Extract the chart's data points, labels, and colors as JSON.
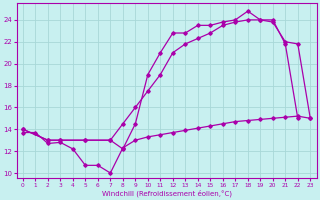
{
  "xlabel": "Windchill (Refroidissement éolien,°C)",
  "background_color": "#c8f0f0",
  "grid_color": "#a8d8d8",
  "line_color": "#aa00aa",
  "xlim": [
    -0.5,
    23.5
  ],
  "ylim": [
    9.5,
    25.5
  ],
  "xticks": [
    0,
    1,
    2,
    3,
    4,
    5,
    6,
    7,
    8,
    9,
    10,
    11,
    12,
    13,
    14,
    15,
    16,
    17,
    18,
    19,
    20,
    21,
    22,
    23
  ],
  "yticks": [
    10,
    12,
    14,
    16,
    18,
    20,
    22,
    24
  ],
  "line1_x": [
    0,
    1,
    2,
    3,
    4,
    5,
    6,
    7,
    8,
    9,
    10,
    11,
    12,
    13,
    14,
    15,
    16,
    17,
    18,
    19,
    20,
    21,
    22,
    23
  ],
  "line1_y": [
    13.7,
    13.7,
    12.7,
    12.8,
    12.2,
    10.7,
    10.7,
    10.0,
    12.3,
    13.0,
    13.3,
    13.5,
    13.7,
    13.9,
    14.1,
    14.3,
    14.5,
    14.7,
    14.8,
    14.9,
    15.0,
    15.1,
    15.2,
    15.0
  ],
  "line2_x": [
    0,
    2,
    3,
    5,
    7,
    8,
    9,
    10,
    11,
    12,
    13,
    14,
    15,
    16,
    17,
    18,
    19,
    20,
    21,
    22,
    23
  ],
  "line2_y": [
    14.0,
    13.0,
    13.0,
    13.0,
    13.0,
    14.5,
    16.0,
    17.5,
    19.0,
    21.0,
    21.8,
    22.3,
    22.8,
    23.5,
    23.8,
    24.0,
    24.0,
    23.8,
    22.0,
    21.8,
    15.0
  ],
  "line3_x": [
    0,
    2,
    3,
    5,
    7,
    8,
    9,
    10,
    11,
    12,
    13,
    14,
    15,
    16,
    17,
    18,
    19,
    20,
    21,
    22,
    23
  ],
  "line3_y": [
    14.0,
    13.0,
    13.0,
    13.0,
    13.0,
    12.2,
    14.5,
    19.0,
    21.0,
    22.8,
    22.8,
    23.5,
    23.5,
    23.8,
    24.0,
    24.8,
    24.0,
    24.0,
    21.8,
    15.0,
    null
  ]
}
